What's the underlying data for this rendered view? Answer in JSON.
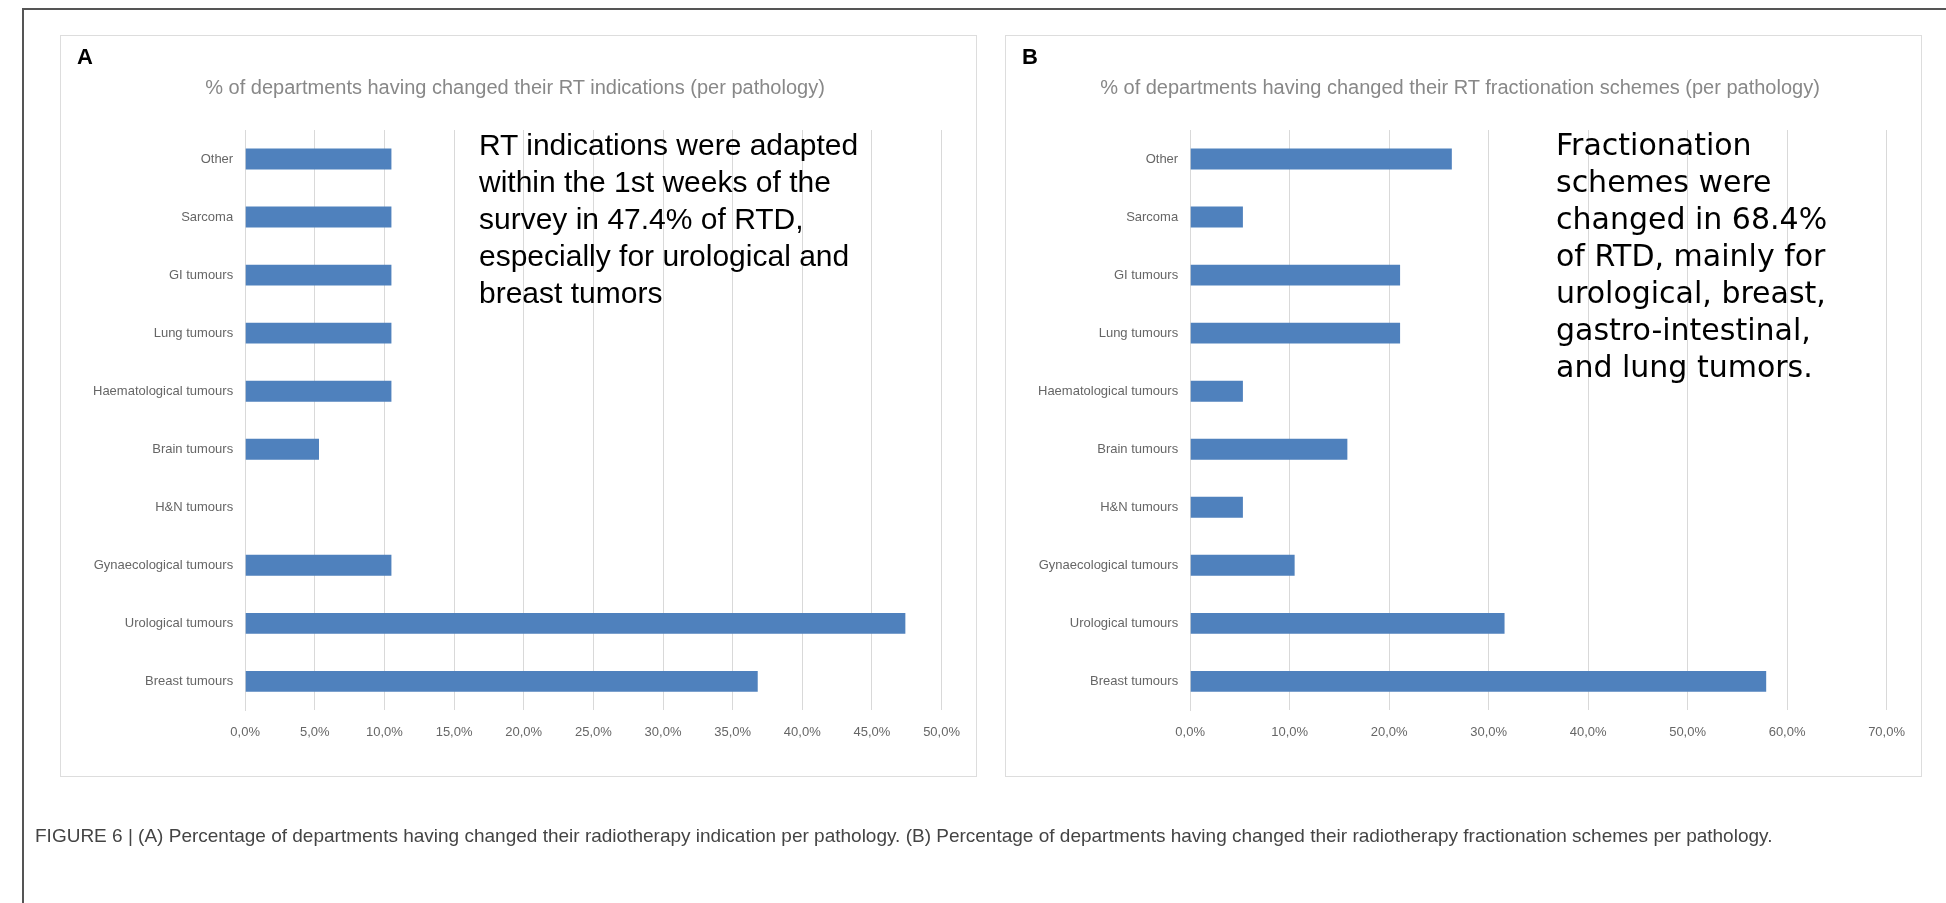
{
  "chart_data": [
    {
      "type": "bar",
      "orientation": "horizontal",
      "title": "% of departments having changed their RT indications (per pathology)",
      "categories": [
        "Other",
        "Sarcoma",
        "GI tumours",
        "Lung tumours",
        "Haematological tumours",
        "Brain tumours",
        "H&N tumours",
        "Gynaecological tumours",
        "Urological tumours",
        "Breast tumours"
      ],
      "values": [
        10.5,
        10.5,
        10.5,
        10.5,
        10.5,
        5.3,
        0,
        10.5,
        47.4,
        36.8
      ],
      "color": "#4f81bd",
      "xlim": [
        0,
        50
      ],
      "xticks": [
        {
          "value": 0,
          "label": "0,0%"
        },
        {
          "value": 5,
          "label": "5,0%"
        },
        {
          "value": 10,
          "label": "10,0%"
        },
        {
          "value": 15,
          "label": "15,0%"
        },
        {
          "value": 20,
          "label": "20,0%"
        },
        {
          "value": 25,
          "label": "25,0%"
        },
        {
          "value": 30,
          "label": "30,0%"
        },
        {
          "value": 35,
          "label": "35,0%"
        },
        {
          "value": 40,
          "label": "40,0%"
        },
        {
          "value": 45,
          "label": "45,0%"
        },
        {
          "value": 50,
          "label": "50,0%"
        }
      ],
      "grid": "x",
      "annotations": [
        "A",
        "RT indications were adapted within the 1st weeks of the survey in 47.4% of RTD, especially for urological and breast tumors",
        "FIGURE 6 | (A) Percentage of departments having changed their radiotherapy indication per pathology. (B) Percentage of departments having changed their radiotherapy fractionation schemes per pathology."
      ]
    },
    {
      "type": "bar",
      "orientation": "horizontal",
      "title": "% of departments having changed their RT fractionation schemes (per pathology)",
      "categories": [
        "Other",
        "Sarcoma",
        "GI tumours",
        "Lung tumours",
        "Haematological tumours",
        "Brain tumours",
        "H&N tumours",
        "Gynaecological tumours",
        "Urological tumours",
        "Breast tumours"
      ],
      "values": [
        26.3,
        5.3,
        21.1,
        21.1,
        5.3,
        15.8,
        5.3,
        10.5,
        31.6,
        57.9
      ],
      "color": "#4f81bd",
      "xlim": [
        0,
        70
      ],
      "xticks": [
        {
          "value": 0,
          "label": "0,0%"
        },
        {
          "value": 10,
          "label": "10,0%"
        },
        {
          "value": 20,
          "label": "20,0%"
        },
        {
          "value": 30,
          "label": "30,0%"
        },
        {
          "value": 40,
          "label": "40,0%"
        },
        {
          "value": 50,
          "label": "50,0%"
        },
        {
          "value": 60,
          "label": "60,0%"
        },
        {
          "value": 70,
          "label": "70,0%"
        }
      ],
      "grid": "x",
      "annotations": [
        "B",
        "Fractionation schemes were changed in 68.4% of RTD, mainly for urological, breast, gastro-intestinal, and lung tumors."
      ]
    }
  ]
}
